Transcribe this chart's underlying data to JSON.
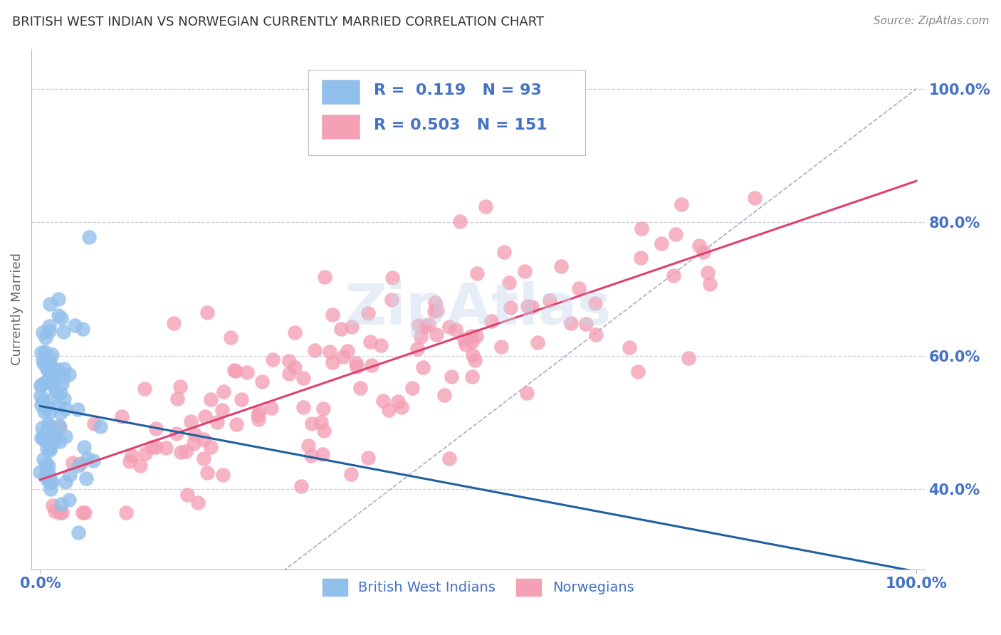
{
  "title": "BRITISH WEST INDIAN VS NORWEGIAN CURRENTLY MARRIED CORRELATION CHART",
  "source": "Source: ZipAtlas.com",
  "ylabel": "Currently Married",
  "blue_label": "British West Indians",
  "pink_label": "Norwegians",
  "legend_line1": "R =  0.119   N = 93",
  "legend_line2": "R = 0.503   N = 151",
  "blue_color": "#92C0EC",
  "pink_color": "#F4A0B5",
  "blue_line_color": "#2060A0",
  "pink_line_color": "#E04070",
  "diag_color": "#AAAACC",
  "grid_color": "#CCCCDD",
  "background_color": "#ffffff",
  "title_color": "#333333",
  "axis_label_color": "#4472C4",
  "source_color": "#888888",
  "watermark_color": "#C8D8EC",
  "ylim_min": 0.28,
  "ylim_max": 1.06,
  "xlim_min": -0.01,
  "xlim_max": 1.01,
  "blue_R": 0.119,
  "blue_N": 93,
  "pink_R": 0.503,
  "pink_N": 151
}
